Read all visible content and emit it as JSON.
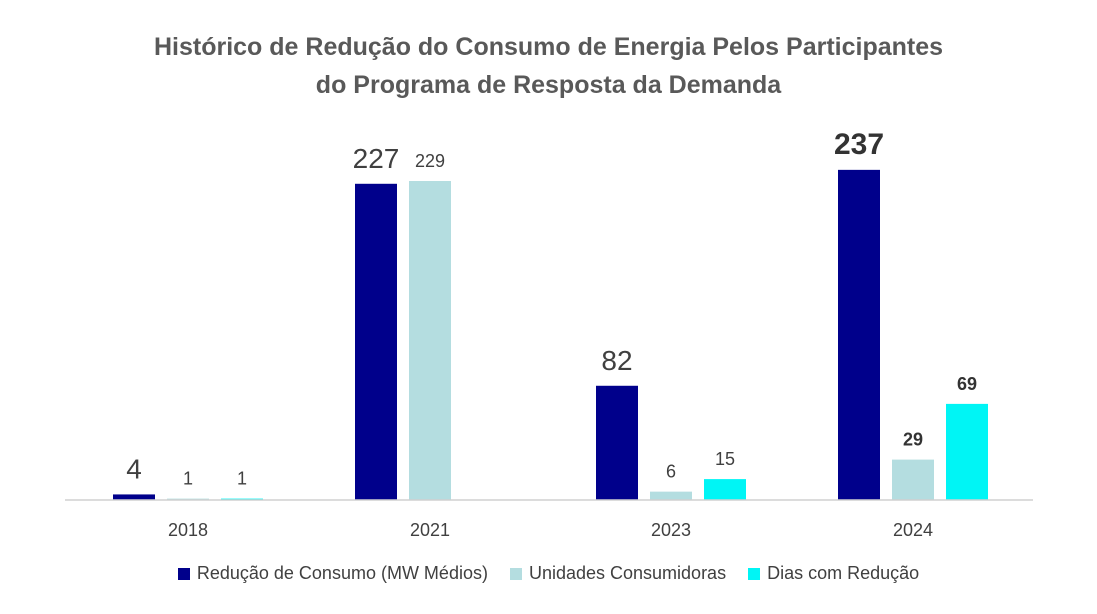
{
  "chart_data": {
    "type": "bar",
    "title_line1": "Histórico de Redução do Consumo de Energia Pelos Participantes",
    "title_line2": "do Programa de Resposta da Demanda",
    "categories": [
      "2018",
      "2021",
      "2023",
      "2024"
    ],
    "series": [
      {
        "name": "Redução de Consumo (MW Médios)",
        "color": "#00008B",
        "values": [
          4,
          227,
          82,
          237
        ]
      },
      {
        "name": "Unidades Consumidoras",
        "color": "#B4DDE0",
        "values": [
          1,
          229,
          6,
          29
        ]
      },
      {
        "name": "Dias com Redução",
        "color": "#00F5F5",
        "values": [
          1,
          null,
          15,
          69
        ]
      }
    ],
    "ylim": [
      0,
      250
    ],
    "grid": false,
    "legend_position": "bottom"
  }
}
